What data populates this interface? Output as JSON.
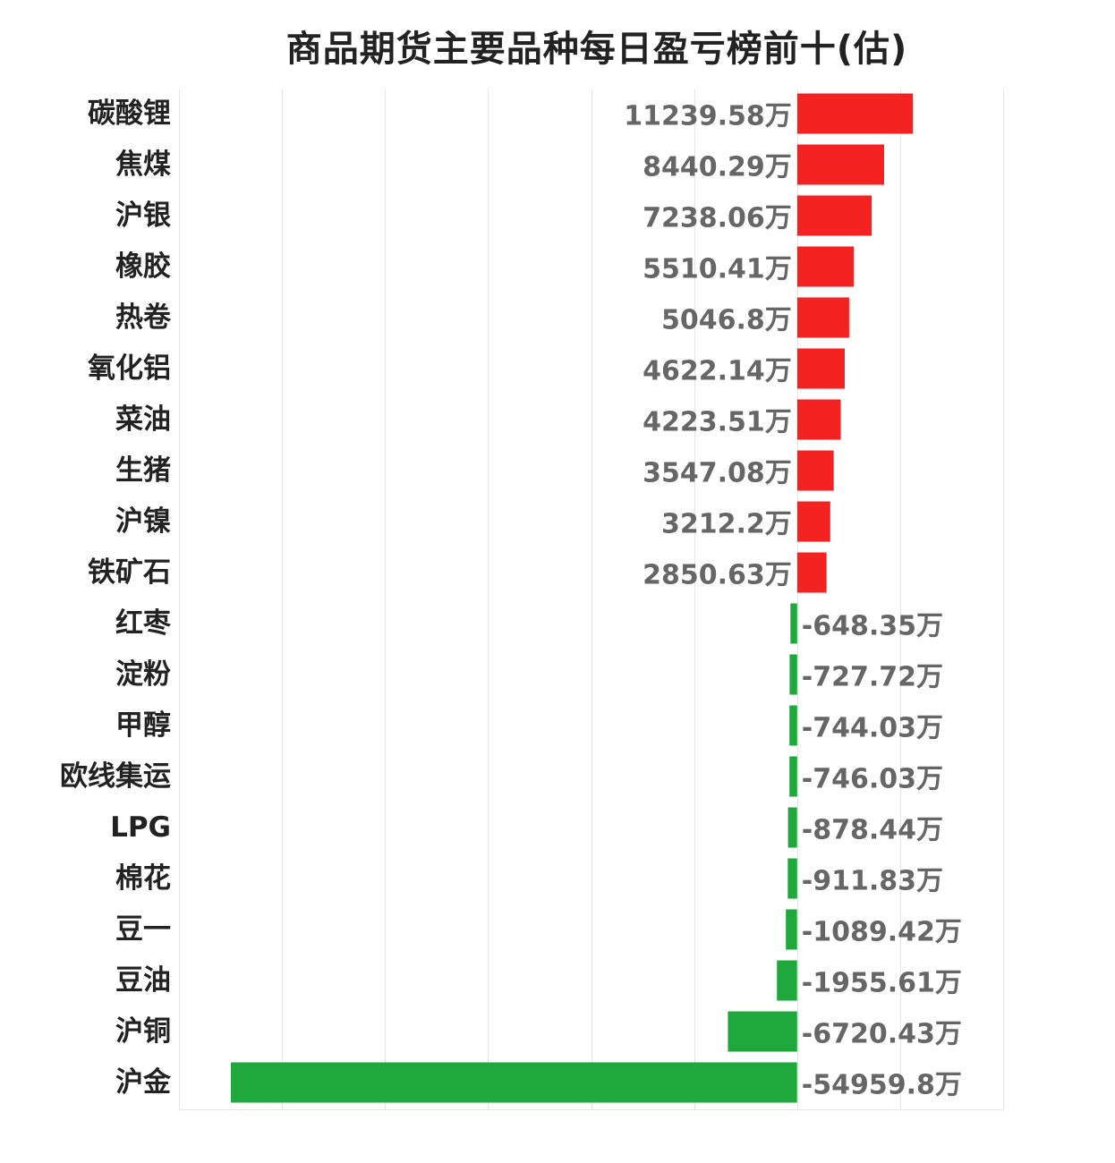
{
  "chart_data": {
    "type": "bar",
    "orientation": "horizontal",
    "title": "商品期货主要品种每日盈亏榜前十(估)",
    "unit": "万",
    "categories": [
      "碳酸锂",
      "焦煤",
      "沪银",
      "橡胶",
      "热卷",
      "氧化铝",
      "菜油",
      "生猪",
      "沪镍",
      "铁矿石",
      "红枣",
      "淀粉",
      "甲醇",
      "欧线集运",
      "LPG",
      "棉花",
      "豆一",
      "豆油",
      "沪铜",
      "沪金"
    ],
    "values": [
      11239.58,
      8440.29,
      7238.06,
      5510.41,
      5046.8,
      4622.14,
      4223.51,
      3547.08,
      3212.2,
      2850.63,
      -648.35,
      -727.72,
      -744.03,
      -746.03,
      -878.44,
      -911.83,
      -1089.42,
      -1955.61,
      -6720.43,
      -54959.8
    ],
    "value_labels": [
      "11239.58万",
      "8440.29万",
      "7238.06万",
      "5510.41万",
      "5046.8万",
      "4622.14万",
      "4223.51万",
      "3547.08万",
      "3212.2万",
      "2850.63万",
      "-648.35万",
      "-727.72万",
      "-744.03万",
      "-746.03万",
      "-878.44万",
      "-911.83万",
      "-1089.42万",
      "-1955.61万",
      "-6720.43万",
      "-54959.8万"
    ],
    "xlim": [
      -60000,
      20000
    ],
    "grid": true,
    "colors": {
      "positive": "#f52222",
      "negative": "#1fa83b",
      "grid": "#e4e4e4"
    }
  }
}
